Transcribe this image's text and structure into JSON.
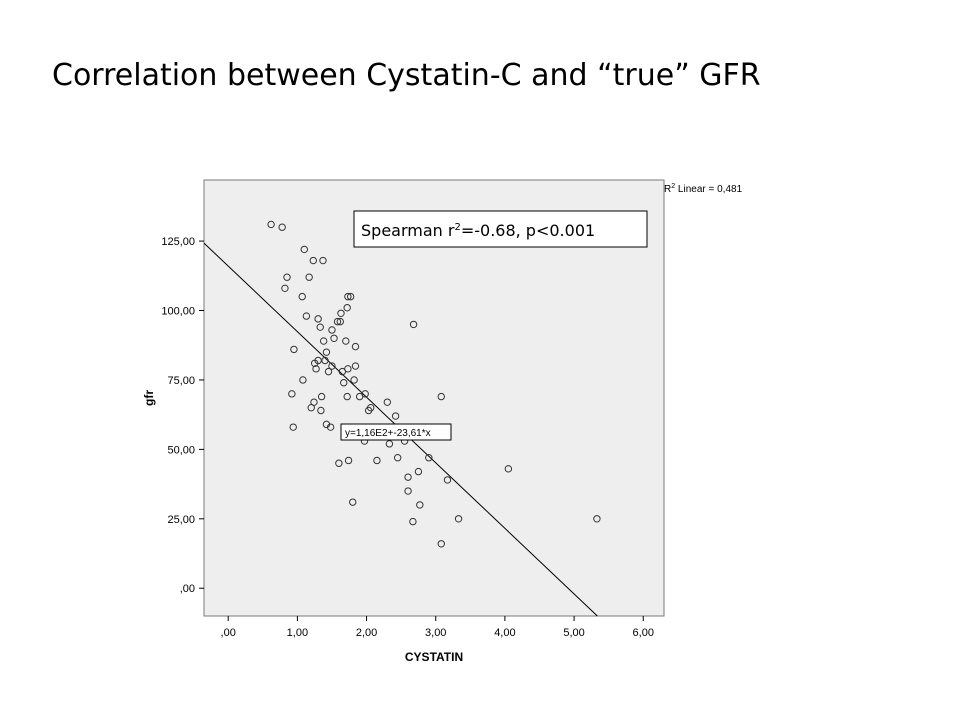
{
  "slide": {
    "title": "Correlation between Cystatin-C and “true” GFR"
  },
  "chart_data": {
    "type": "scatter",
    "xlabel": "CYSTATIN",
    "ylabel": "gfr",
    "xlim": [
      -0.35,
      6.3
    ],
    "ylim": [
      -10,
      147
    ],
    "x_ticks": [
      0,
      1,
      2,
      3,
      4,
      5,
      6
    ],
    "x_tick_labels": [
      ",00",
      "1,00",
      "2,00",
      "3,00",
      "4,00",
      "5,00",
      "6,00"
    ],
    "y_ticks": [
      0,
      25,
      50,
      75,
      100,
      125
    ],
    "y_tick_labels": [
      ",00",
      "25,00",
      "50,00",
      "75,00",
      "100,00",
      "125,00"
    ],
    "grid": false,
    "plot_background": "#eeeeee",
    "fit_line": {
      "intercept": 116,
      "slope": -23.61,
      "label": "y=1,16E2+-23,61*x"
    },
    "r2_label_prefix": "R",
    "r2_label_sup": "2",
    "r2_label_suffix": " Linear = 0,481",
    "stat_box": {
      "prefix": "Spearman r",
      "sup": "2",
      "suffix": "=-0.68, p<0.001"
    },
    "points": [
      [
        0.62,
        131
      ],
      [
        0.78,
        130
      ],
      [
        1.1,
        122
      ],
      [
        0.85,
        112
      ],
      [
        0.82,
        108
      ],
      [
        1.23,
        118
      ],
      [
        1.37,
        118
      ],
      [
        1.17,
        112
      ],
      [
        1.07,
        105
      ],
      [
        1.77,
        105
      ],
      [
        1.73,
        105
      ],
      [
        1.72,
        101
      ],
      [
        1.63,
        99
      ],
      [
        1.13,
        98
      ],
      [
        1.3,
        97
      ],
      [
        1.58,
        96
      ],
      [
        1.62,
        96
      ],
      [
        2.68,
        95
      ],
      [
        1.33,
        94
      ],
      [
        1.5,
        93
      ],
      [
        1.53,
        90
      ],
      [
        1.38,
        89
      ],
      [
        1.7,
        89
      ],
      [
        0.95,
        86
      ],
      [
        1.84,
        87
      ],
      [
        1.42,
        85
      ],
      [
        1.3,
        82
      ],
      [
        1.4,
        82
      ],
      [
        1.25,
        81
      ],
      [
        1.5,
        80
      ],
      [
        1.84,
        80
      ],
      [
        1.27,
        79
      ],
      [
        1.45,
        78
      ],
      [
        1.65,
        78
      ],
      [
        1.73,
        79
      ],
      [
        1.08,
        75
      ],
      [
        1.82,
        75
      ],
      [
        1.67,
        74
      ],
      [
        0.92,
        70
      ],
      [
        1.35,
        69
      ],
      [
        1.72,
        69
      ],
      [
        1.98,
        70
      ],
      [
        1.9,
        69
      ],
      [
        3.08,
        69
      ],
      [
        1.24,
        67
      ],
      [
        2.3,
        67
      ],
      [
        1.2,
        65
      ],
      [
        1.34,
        64
      ],
      [
        2.06,
        65
      ],
      [
        2.03,
        64
      ],
      [
        2.42,
        62
      ],
      [
        1.42,
        59
      ],
      [
        1.48,
        58
      ],
      [
        0.94,
        58
      ],
      [
        1.97,
        53
      ],
      [
        2.33,
        52
      ],
      [
        2.55,
        53
      ],
      [
        2.9,
        47
      ],
      [
        2.45,
        47
      ],
      [
        2.15,
        46
      ],
      [
        1.74,
        46
      ],
      [
        1.6,
        45
      ],
      [
        4.05,
        43
      ],
      [
        2.75,
        42
      ],
      [
        2.6,
        40
      ],
      [
        3.17,
        39
      ],
      [
        2.6,
        35
      ],
      [
        1.8,
        31
      ],
      [
        2.77,
        30
      ],
      [
        3.33,
        25
      ],
      [
        2.67,
        24
      ],
      [
        5.33,
        25
      ],
      [
        3.08,
        16
      ]
    ]
  }
}
